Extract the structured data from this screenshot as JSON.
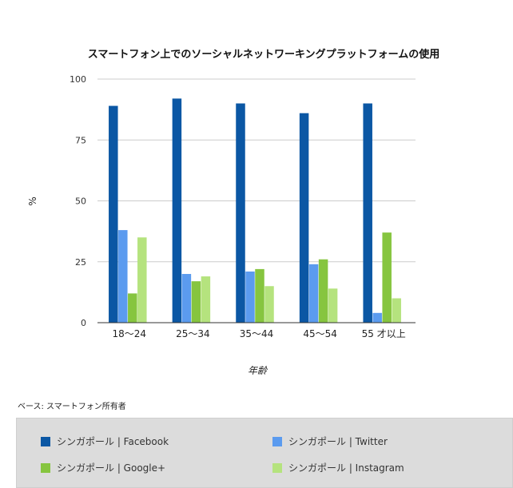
{
  "chart_data": {
    "type": "bar",
    "title": "スマートフォン上でのソーシャルネットワーキングプラットフォームの使用",
    "xlabel": "年齢",
    "ylabel": "%",
    "ylim": [
      0,
      100
    ],
    "yticks": [
      "100",
      "75",
      "50",
      "25",
      "0"
    ],
    "categories": [
      "18〜24",
      "25〜34",
      "35〜44",
      "45〜54",
      "55 才以上"
    ],
    "grid": true,
    "legend_position": "bottom",
    "series": [
      {
        "name": "シンガポール | Facebook",
        "color": "#0b57a4",
        "values": [
          89,
          92,
          90,
          86,
          90
        ]
      },
      {
        "name": "シンガポール | Twitter",
        "color": "#5b9bef",
        "values": [
          38,
          20,
          21,
          24,
          4
        ]
      },
      {
        "name": "シンガポール | Google+",
        "color": "#86c53f",
        "values": [
          12,
          17,
          22,
          26,
          37
        ]
      },
      {
        "name": "シンガポール | Instagram",
        "color": "#b5e37e",
        "values": [
          35,
          19,
          15,
          14,
          10
        ]
      }
    ]
  },
  "base_note": "ベース: スマートフォン所有者"
}
